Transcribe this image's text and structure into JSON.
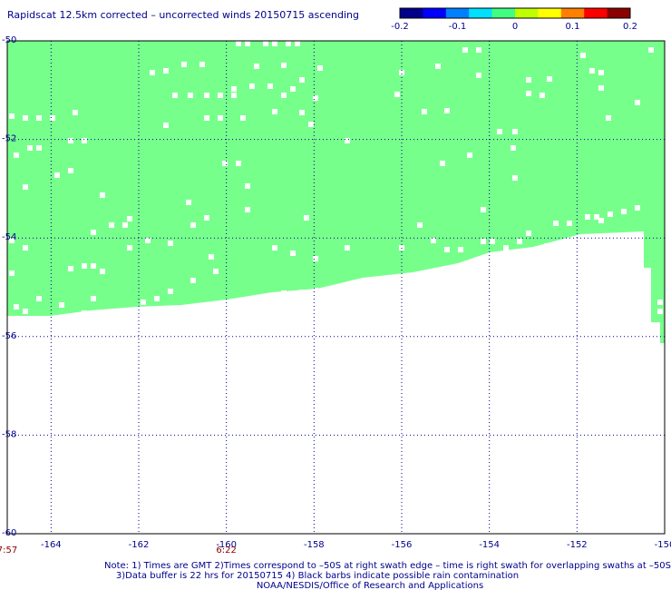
{
  "title": "Rapidscat 12.5km corrected – uncorrected winds 20150715 ascending",
  "colorbar": {
    "ticks": [
      "-0.2",
      "-0.1",
      "0",
      "0.1",
      "0.2"
    ],
    "colors": [
      "#00008b",
      "#0000ff",
      "#0080ff",
      "#00e0ff",
      "#40ff80",
      "#c0ff00",
      "#ffff00",
      "#ff8000",
      "#ff0000",
      "#8b0000"
    ]
  },
  "map": {
    "lon_range": [
      -165,
      -150
    ],
    "lat_range": [
      -60,
      -50
    ],
    "lon_ticks": [
      "-164",
      "-162",
      "-160",
      "-158",
      "-156",
      "-154",
      "-152",
      "-150"
    ],
    "lat_ticks": [
      "-50",
      "-52",
      "-54",
      "-56",
      "-58",
      "-60"
    ],
    "swath_color": "#77ff8c",
    "grid": true
  },
  "times": [
    {
      "lon": -165,
      "text": "7:57"
    },
    {
      "lon": -160,
      "text": "6:22"
    }
  ],
  "notes": [
    "Note: 1) Times are GMT 2)Times correspond to –50S at right swath edge – time is right swath for overlapping swaths at –50S",
    "3)Data buffer is 22 hrs for 20150715 4) Black barbs indicate possible rain contamination",
    "NOAA/NESDIS/Office of Research and Applications"
  ]
}
